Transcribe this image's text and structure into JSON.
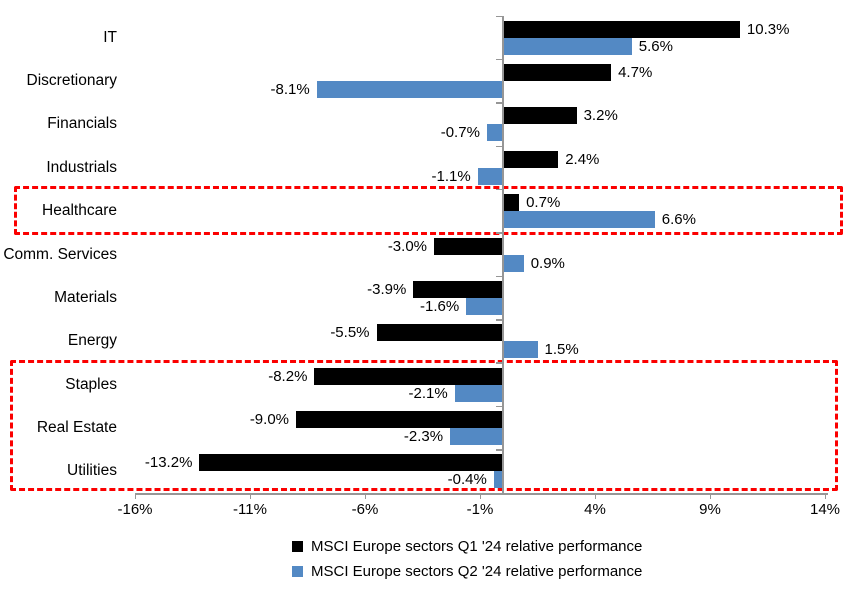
{
  "chart_data": {
    "type": "bar",
    "orientation": "horizontal",
    "title": "",
    "categories": [
      "IT",
      "Discretionary",
      "Financials",
      "Industrials",
      "Healthcare",
      "Comm. Services",
      "Materials",
      "Energy",
      "Staples",
      "Real Estate",
      "Utilities"
    ],
    "series": [
      {
        "name": "MSCI Europe sectors Q1 '24 relative performance",
        "color": "#000000",
        "values": [
          10.3,
          4.7,
          3.2,
          2.4,
          0.7,
          -3.0,
          -3.9,
          -5.5,
          -8.2,
          -9.0,
          -13.2
        ],
        "labels": [
          "10.3%",
          "4.7%",
          "3.2%",
          "2.4%",
          "0.7%",
          "-3.0%",
          "-3.9%",
          "-5.5%",
          "-8.2%",
          "-9.0%",
          "-13.2%"
        ]
      },
      {
        "name": "MSCI Europe sectors Q2 '24 relative performance",
        "color": "#5389C4",
        "values": [
          5.6,
          -8.1,
          -0.7,
          -1.1,
          6.6,
          0.9,
          -1.6,
          1.5,
          -2.1,
          -2.3,
          -0.4
        ],
        "labels": [
          "5.6%",
          "-8.1%",
          "-0.7%",
          "-1.1%",
          "6.6%",
          "0.9%",
          "-1.6%",
          "1.5%",
          "-2.1%",
          "-2.3%",
          "-0.4%"
        ]
      }
    ],
    "x_axis": {
      "tick_labels": [
        "-16%",
        "-11%",
        "-6%",
        "-1%",
        "4%",
        "9%",
        "14%"
      ],
      "tick_values": [
        -16,
        -11,
        -6,
        -1,
        4,
        9,
        14
      ],
      "min": -16,
      "max": 14
    },
    "ylabel": "",
    "xlabel": "",
    "grid": false,
    "legend_position": "bottom",
    "highlight_boxes": [
      {
        "name": "healthcare-highlight",
        "categories": [
          "Healthcare"
        ],
        "color": "#fb0000"
      },
      {
        "name": "defensives-highlight",
        "categories": [
          "Staples",
          "Real Estate",
          "Utilities"
        ],
        "color": "#fb0000"
      }
    ]
  },
  "colors": {
    "axis": "#969696",
    "background": "#ffffff",
    "label_text": "#000000"
  }
}
